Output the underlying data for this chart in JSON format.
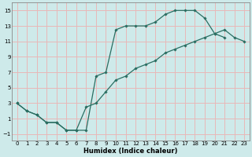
{
  "xlabel": "Humidex (Indice chaleur)",
  "xlim": [
    -0.5,
    23.5
  ],
  "ylim": [
    -1.8,
    16.0
  ],
  "xticks": [
    0,
    1,
    2,
    3,
    4,
    5,
    6,
    7,
    8,
    9,
    10,
    11,
    12,
    13,
    14,
    15,
    16,
    17,
    18,
    19,
    20,
    21,
    22,
    23
  ],
  "yticks": [
    -1,
    1,
    3,
    5,
    7,
    9,
    11,
    13,
    15
  ],
  "line_color": "#2a6e62",
  "bg_color": "#ceeaea",
  "grid_color": "#e8b8b8",
  "line1_x": [
    0,
    1,
    2,
    3,
    4,
    5,
    6,
    7,
    8,
    9,
    10,
    11,
    12,
    13,
    14,
    15,
    16,
    17,
    18,
    19,
    20,
    21
  ],
  "line1_y": [
    3,
    2,
    1.5,
    0.5,
    0.5,
    -0.5,
    -0.5,
    -0.5,
    6.5,
    7,
    12.5,
    13,
    13,
    13,
    13.5,
    14.5,
    15,
    15,
    15,
    14,
    12,
    11.5
  ],
  "line2_x": [
    0,
    1,
    2,
    3,
    4,
    5,
    6,
    7,
    8,
    9,
    10,
    11,
    12,
    13,
    14,
    15,
    16,
    17,
    18,
    19,
    20,
    21,
    22,
    23
  ],
  "line2_y": [
    3,
    2,
    1.5,
    0.5,
    0.5,
    -0.5,
    -0.5,
    2.5,
    3,
    4.5,
    6,
    6.5,
    7.5,
    8,
    8.5,
    9.5,
    10,
    10.5,
    11,
    11.5,
    12,
    12.5,
    11.5,
    11
  ]
}
